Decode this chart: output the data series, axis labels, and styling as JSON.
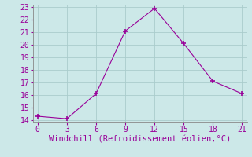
{
  "x": [
    0,
    3,
    6,
    9,
    12,
    15,
    18,
    21
  ],
  "y": [
    14.3,
    14.1,
    16.1,
    21.1,
    22.9,
    20.1,
    17.1,
    16.1
  ],
  "line_color": "#990099",
  "marker": "+",
  "marker_size": 5,
  "marker_lw": 1.2,
  "xlabel": "Windchill (Refroidissement éolien,°C)",
  "xlim": [
    -0.5,
    21.5
  ],
  "ylim": [
    13.8,
    23.2
  ],
  "xticks": [
    0,
    3,
    6,
    9,
    12,
    15,
    18,
    21
  ],
  "yticks": [
    14,
    15,
    16,
    17,
    18,
    19,
    20,
    21,
    22,
    23
  ],
  "bg_color": "#cce8e8",
  "grid_color": "#aacccc",
  "font_color": "#990099",
  "font_size": 7.0,
  "xlabel_fontsize": 7.5
}
